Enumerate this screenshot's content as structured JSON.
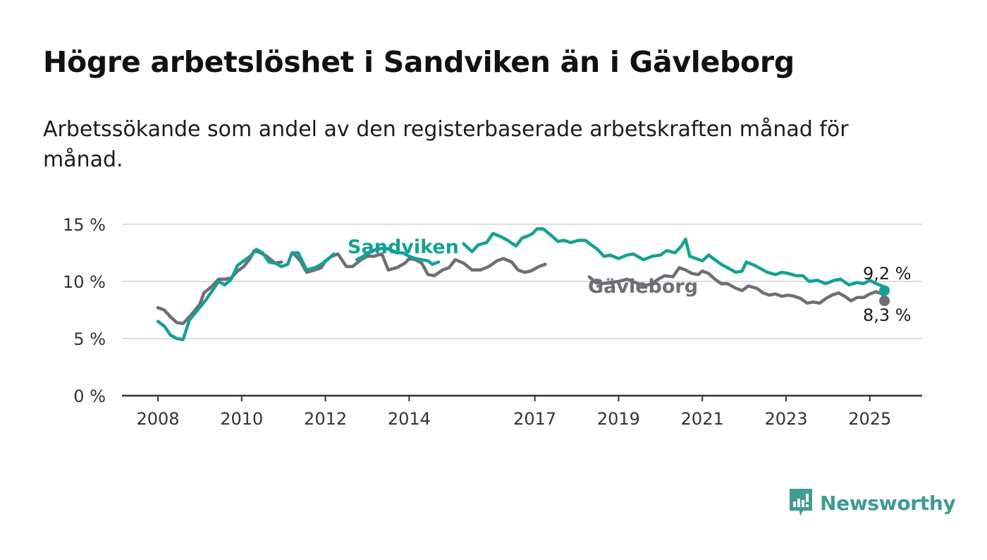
{
  "title": "Högre arbetslöshet i Sandviken än i Gävleborg",
  "subtitle": "Arbetssökande som andel av den registerbaserade arbetskraften månad för månad.",
  "brand": {
    "name": "Newsworthy",
    "icon": "newsworthy-logo-icon",
    "color": "#3f9b94"
  },
  "colors": {
    "sandviken": "#14a195",
    "gavleborg": "#706d74",
    "grid": "#dddddd",
    "axis": "#333333"
  },
  "chart_data": {
    "type": "line",
    "title": "Högre arbetslöshet i Sandviken än i Gävleborg",
    "subtitle": "Arbetssökande som andel av den registerbaserade arbetskraften månad för månad.",
    "xlabel": "",
    "ylabel": "",
    "xlim": [
      2007.8,
      2026.2
    ],
    "ylim": [
      0,
      15
    ],
    "grid": true,
    "x_ticks": [
      {
        "value": 2008,
        "label": "2008"
      },
      {
        "value": 2010,
        "label": "2010"
      },
      {
        "value": 2012,
        "label": "2012"
      },
      {
        "value": 2014,
        "label": "2014"
      },
      {
        "value": 2017,
        "label": "2017"
      },
      {
        "value": 2019,
        "label": "2019"
      },
      {
        "value": 2021,
        "label": "2021"
      },
      {
        "value": 2023,
        "label": "2023"
      },
      {
        "value": 2025,
        "label": "2025"
      }
    ],
    "y_ticks": [
      {
        "value": 0,
        "label": "0 %"
      },
      {
        "value": 5,
        "label": "5 %"
      },
      {
        "value": 10,
        "label": "10 %"
      },
      {
        "value": 15,
        "label": "15 %"
      }
    ],
    "series": [
      {
        "name": "Gävleborg",
        "color": "#706d74",
        "end_label": "8,3 %",
        "label_near": [
          2011.05,
          2011.2,
          2017.4,
          2018.3
        ],
        "points": [
          [
            2008.0,
            7.7
          ],
          [
            2008.15,
            7.5
          ],
          [
            2008.3,
            6.9
          ],
          [
            2008.45,
            6.4
          ],
          [
            2008.6,
            6.3
          ],
          [
            2008.8,
            7.1
          ],
          [
            2009.0,
            8.0
          ],
          [
            2009.1,
            9.0
          ],
          [
            2009.3,
            9.6
          ],
          [
            2009.45,
            10.2
          ],
          [
            2009.6,
            10.2
          ],
          [
            2009.75,
            10.3
          ],
          [
            2009.9,
            10.9
          ],
          [
            2010.05,
            11.3
          ],
          [
            2010.2,
            12.0
          ],
          [
            2010.3,
            12.7
          ],
          [
            2010.45,
            12.5
          ],
          [
            2010.6,
            12.2
          ],
          [
            2010.8,
            11.6
          ],
          [
            2010.95,
            11.7
          ],
          [
            2011.1,
            11.9
          ],
          [
            2011.25,
            12.4
          ],
          [
            2011.4,
            11.8
          ],
          [
            2011.55,
            10.8
          ],
          [
            2011.75,
            11.0
          ],
          [
            2011.9,
            11.2
          ],
          [
            2012.0,
            11.8
          ],
          [
            2012.15,
            12.2
          ],
          [
            2012.3,
            12.4
          ],
          [
            2012.5,
            11.3
          ],
          [
            2012.65,
            11.3
          ],
          [
            2012.85,
            11.9
          ],
          [
            2013.0,
            12.2
          ],
          [
            2013.15,
            12.2
          ],
          [
            2013.35,
            12.4
          ],
          [
            2013.5,
            11.0
          ],
          [
            2013.7,
            11.2
          ],
          [
            2013.9,
            11.6
          ],
          [
            2014.0,
            12.0
          ],
          [
            2014.15,
            11.9
          ],
          [
            2014.3,
            11.6
          ],
          [
            2014.45,
            10.6
          ],
          [
            2014.6,
            10.5
          ],
          [
            2014.8,
            11.0
          ],
          [
            2014.95,
            11.2
          ],
          [
            2015.1,
            11.9
          ],
          [
            2015.3,
            11.6
          ],
          [
            2015.5,
            11.0
          ],
          [
            2015.7,
            11.0
          ],
          [
            2015.9,
            11.3
          ],
          [
            2016.1,
            11.8
          ],
          [
            2016.25,
            12.0
          ],
          [
            2016.45,
            11.7
          ],
          [
            2016.6,
            11.0
          ],
          [
            2016.75,
            10.8
          ],
          [
            2016.9,
            10.9
          ],
          [
            2017.1,
            11.3
          ],
          [
            2017.25,
            11.5
          ],
          [
            2017.45,
            11.3
          ],
          [
            2017.6,
            10.4
          ],
          [
            2017.75,
            10.2
          ],
          [
            2017.9,
            10.3
          ],
          [
            2018.1,
            10.5
          ],
          [
            2018.3,
            10.4
          ],
          [
            2018.45,
            9.9
          ],
          [
            2018.6,
            9.8
          ],
          [
            2018.8,
            9.9
          ],
          [
            2019.0,
            10.0
          ],
          [
            2019.2,
            10.2
          ],
          [
            2019.4,
            9.9
          ],
          [
            2019.6,
            9.6
          ],
          [
            2019.8,
            9.8
          ],
          [
            2019.95,
            10.2
          ],
          [
            2020.1,
            10.5
          ],
          [
            2020.3,
            10.4
          ],
          [
            2020.45,
            11.2
          ],
          [
            2020.6,
            11.0
          ],
          [
            2020.75,
            10.7
          ],
          [
            2020.9,
            10.6
          ],
          [
            2021.0,
            10.9
          ],
          [
            2021.15,
            10.7
          ],
          [
            2021.3,
            10.2
          ],
          [
            2021.45,
            9.8
          ],
          [
            2021.6,
            9.8
          ],
          [
            2021.8,
            9.4
          ],
          [
            2021.95,
            9.2
          ],
          [
            2022.1,
            9.6
          ],
          [
            2022.3,
            9.4
          ],
          [
            2022.45,
            9.0
          ],
          [
            2022.6,
            8.8
          ],
          [
            2022.75,
            8.9
          ],
          [
            2022.9,
            8.7
          ],
          [
            2023.05,
            8.8
          ],
          [
            2023.2,
            8.7
          ],
          [
            2023.35,
            8.5
          ],
          [
            2023.5,
            8.1
          ],
          [
            2023.65,
            8.2
          ],
          [
            2023.8,
            8.1
          ],
          [
            2023.95,
            8.5
          ],
          [
            2024.1,
            8.8
          ],
          [
            2024.25,
            9.0
          ],
          [
            2024.4,
            8.7
          ],
          [
            2024.55,
            8.3
          ],
          [
            2024.7,
            8.6
          ],
          [
            2024.85,
            8.6
          ],
          [
            2025.0,
            8.9
          ],
          [
            2025.15,
            9.1
          ],
          [
            2025.3,
            8.9
          ],
          [
            2025.35,
            8.3
          ]
        ]
      },
      {
        "name": "Sandviken",
        "color": "#14a195",
        "end_label": "9,2 %",
        "label_near": [
          2012.35,
          2012.75,
          2014.75,
          2015.2
        ],
        "points": [
          [
            2008.0,
            6.5
          ],
          [
            2008.15,
            6.1
          ],
          [
            2008.3,
            5.3
          ],
          [
            2008.45,
            5.0
          ],
          [
            2008.6,
            4.9
          ],
          [
            2008.75,
            6.6
          ],
          [
            2008.95,
            7.5
          ],
          [
            2009.15,
            8.4
          ],
          [
            2009.3,
            9.2
          ],
          [
            2009.45,
            10.0
          ],
          [
            2009.6,
            9.7
          ],
          [
            2009.75,
            10.2
          ],
          [
            2009.9,
            11.4
          ],
          [
            2010.05,
            11.8
          ],
          [
            2010.2,
            12.2
          ],
          [
            2010.35,
            12.8
          ],
          [
            2010.5,
            12.5
          ],
          [
            2010.65,
            11.7
          ],
          [
            2010.8,
            11.6
          ],
          [
            2010.95,
            11.3
          ],
          [
            2011.1,
            11.5
          ],
          [
            2011.2,
            12.5
          ],
          [
            2011.35,
            12.5
          ],
          [
            2011.55,
            11.0
          ],
          [
            2011.75,
            11.2
          ],
          [
            2011.9,
            11.5
          ],
          [
            2012.05,
            11.9
          ],
          [
            2012.2,
            12.4
          ],
          [
            2012.45,
            12.5
          ],
          [
            2012.6,
            12.0
          ],
          [
            2012.75,
            11.9
          ],
          [
            2012.9,
            12.2
          ],
          [
            2013.05,
            12.5
          ],
          [
            2013.2,
            12.8
          ],
          [
            2013.4,
            12.9
          ],
          [
            2013.55,
            12.8
          ],
          [
            2013.7,
            12.5
          ],
          [
            2013.85,
            12.5
          ],
          [
            2014.0,
            12.2
          ],
          [
            2014.15,
            12.0
          ],
          [
            2014.3,
            11.9
          ],
          [
            2014.45,
            11.8
          ],
          [
            2014.55,
            11.5
          ],
          [
            2014.7,
            11.7
          ],
          [
            2014.85,
            12.1
          ],
          [
            2015.0,
            12.8
          ],
          [
            2015.15,
            13.6
          ],
          [
            2015.3,
            13.3
          ],
          [
            2015.5,
            12.6
          ],
          [
            2015.65,
            13.2
          ],
          [
            2015.85,
            13.4
          ],
          [
            2016.0,
            14.2
          ],
          [
            2016.2,
            13.9
          ],
          [
            2016.35,
            13.6
          ],
          [
            2016.55,
            13.1
          ],
          [
            2016.7,
            13.8
          ],
          [
            2016.85,
            14.0
          ],
          [
            2016.95,
            14.2
          ],
          [
            2017.05,
            14.6
          ],
          [
            2017.2,
            14.6
          ],
          [
            2017.4,
            14.0
          ],
          [
            2017.55,
            13.5
          ],
          [
            2017.7,
            13.6
          ],
          [
            2017.85,
            13.4
          ],
          [
            2018.05,
            13.6
          ],
          [
            2018.2,
            13.6
          ],
          [
            2018.35,
            13.2
          ],
          [
            2018.5,
            12.8
          ],
          [
            2018.65,
            12.2
          ],
          [
            2018.8,
            12.3
          ],
          [
            2019.0,
            12.0
          ],
          [
            2019.2,
            12.3
          ],
          [
            2019.35,
            12.4
          ],
          [
            2019.5,
            12.1
          ],
          [
            2019.6,
            11.9
          ],
          [
            2019.8,
            12.2
          ],
          [
            2020.0,
            12.3
          ],
          [
            2020.15,
            12.7
          ],
          [
            2020.35,
            12.5
          ],
          [
            2020.5,
            13.1
          ],
          [
            2020.6,
            13.7
          ],
          [
            2020.7,
            12.2
          ],
          [
            2020.85,
            12.0
          ],
          [
            2021.0,
            11.8
          ],
          [
            2021.15,
            12.3
          ],
          [
            2021.3,
            11.9
          ],
          [
            2021.45,
            11.5
          ],
          [
            2021.65,
            11.1
          ],
          [
            2021.8,
            10.8
          ],
          [
            2021.95,
            10.9
          ],
          [
            2022.05,
            11.7
          ],
          [
            2022.25,
            11.4
          ],
          [
            2022.4,
            11.1
          ],
          [
            2022.55,
            10.8
          ],
          [
            2022.75,
            10.6
          ],
          [
            2022.9,
            10.8
          ],
          [
            2023.05,
            10.7
          ],
          [
            2023.25,
            10.5
          ],
          [
            2023.4,
            10.5
          ],
          [
            2023.55,
            10.0
          ],
          [
            2023.75,
            10.1
          ],
          [
            2023.95,
            9.8
          ],
          [
            2024.15,
            10.1
          ],
          [
            2024.3,
            10.2
          ],
          [
            2024.5,
            9.7
          ],
          [
            2024.7,
            9.9
          ],
          [
            2024.85,
            9.8
          ],
          [
            2025.0,
            10.1
          ],
          [
            2025.15,
            9.8
          ],
          [
            2025.3,
            9.6
          ],
          [
            2025.35,
            9.2
          ]
        ]
      }
    ]
  }
}
